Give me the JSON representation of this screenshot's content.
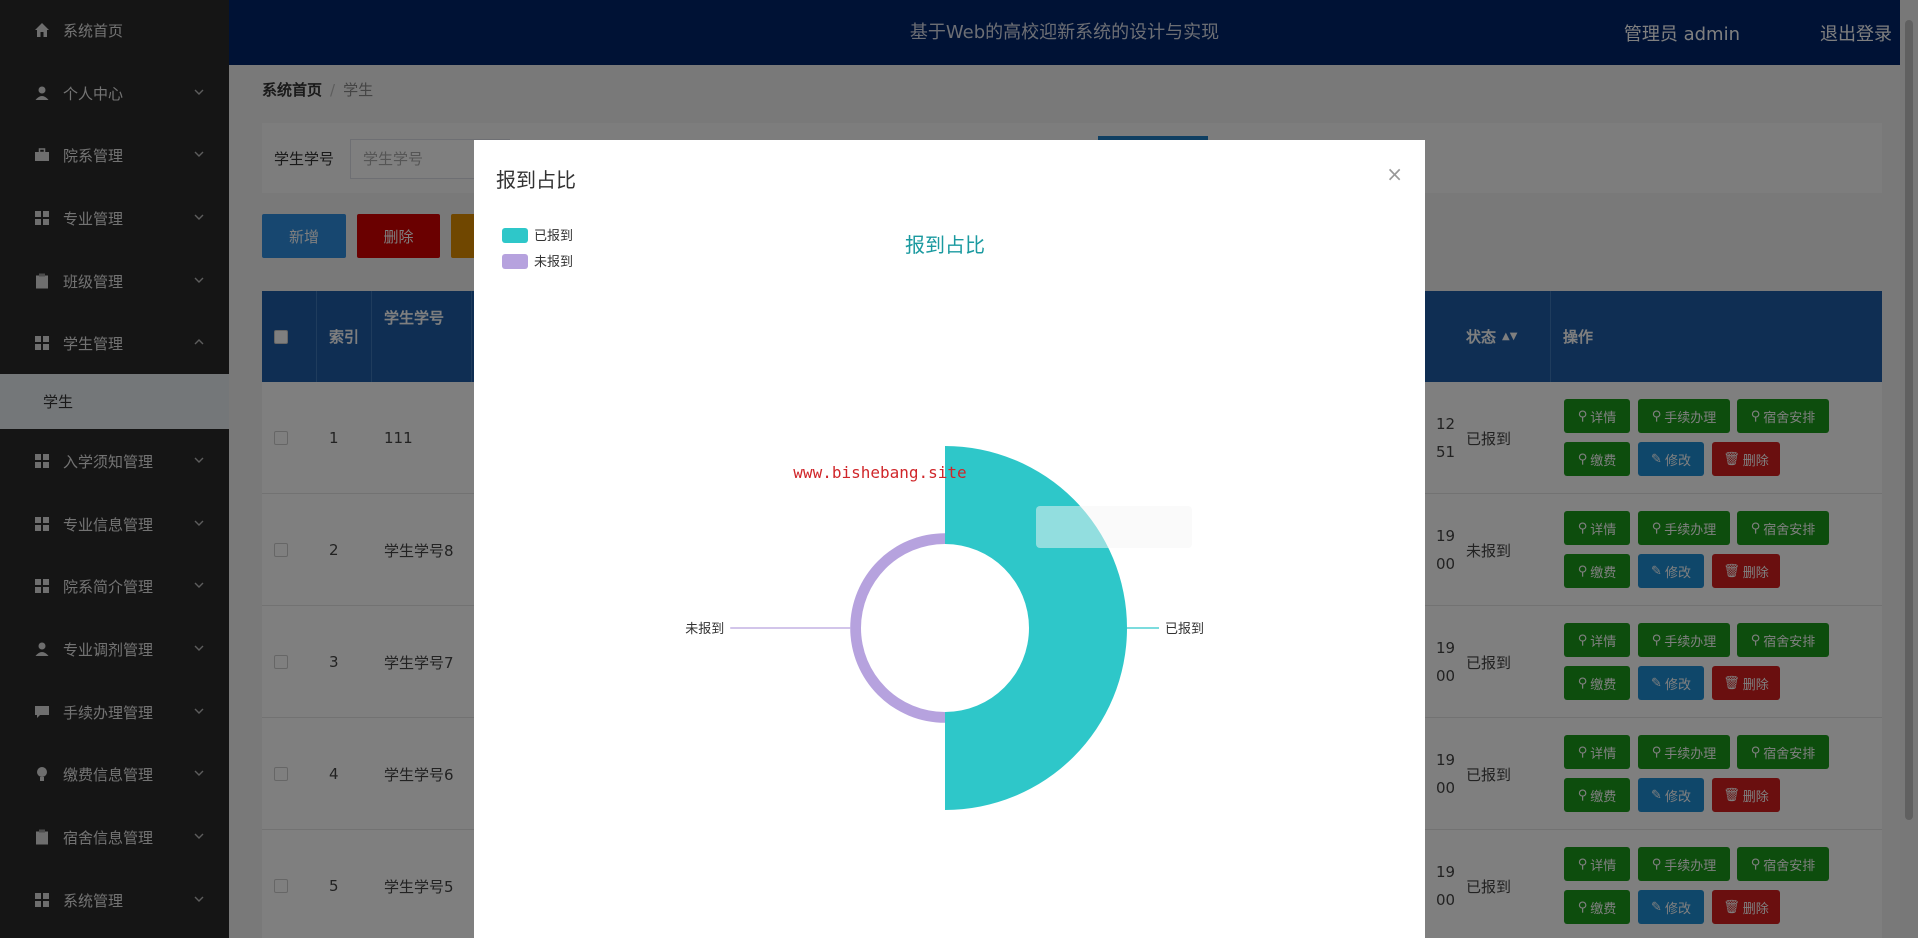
{
  "header": {
    "title": "基于Web的高校迎新系统的设计与实现",
    "user": "管理员 admin",
    "logout": "退出登录"
  },
  "sidebar": {
    "items": [
      {
        "label": "系统首页",
        "icon": "home-icon",
        "expandable": false
      },
      {
        "label": "个人中心",
        "icon": "user-icon",
        "expandable": true
      },
      {
        "label": "院系管理",
        "icon": "briefcase-icon",
        "expandable": true
      },
      {
        "label": "专业管理",
        "icon": "grid-icon",
        "expandable": true
      },
      {
        "label": "班级管理",
        "icon": "clipboard-icon",
        "expandable": true
      },
      {
        "label": "学生管理",
        "icon": "grid-icon",
        "expandable": true,
        "expanded": true
      },
      {
        "label": "入学须知管理",
        "icon": "grid-icon",
        "expandable": true
      },
      {
        "label": "专业信息管理",
        "icon": "grid-icon",
        "expandable": true
      },
      {
        "label": "院系简介管理",
        "icon": "grid-icon",
        "expandable": true
      },
      {
        "label": "专业调剂管理",
        "icon": "user-icon",
        "expandable": true
      },
      {
        "label": "手续办理管理",
        "icon": "chat-icon",
        "expandable": true
      },
      {
        "label": "缴费信息管理",
        "icon": "bulb-icon",
        "expandable": true
      },
      {
        "label": "宿舍信息管理",
        "icon": "clipboard-icon",
        "expandable": true
      },
      {
        "label": "系统管理",
        "icon": "grid-icon",
        "expandable": true
      }
    ],
    "sub_item": "学生"
  },
  "breadcrumb": {
    "home": "系统首页",
    "current": "学生"
  },
  "search": {
    "label": "学生学号",
    "placeholder": "学生学号"
  },
  "toolbar": {
    "add": "新增",
    "delete": "删除"
  },
  "table": {
    "headers": {
      "index": "索引",
      "student_no": "学生学号",
      "status": "状态",
      "actions": "操作"
    },
    "rows": [
      {
        "index": "1",
        "student_no": "111",
        "partial_a": "12",
        "partial_b": "51",
        "status": "已报到"
      },
      {
        "index": "2",
        "student_no": "学生学号8",
        "partial_a": "19",
        "partial_b": "00",
        "status": "未报到"
      },
      {
        "index": "3",
        "student_no": "学生学号7",
        "partial_a": "19",
        "partial_b": "00",
        "status": "已报到"
      },
      {
        "index": "4",
        "student_no": "学生学号6",
        "partial_a": "19",
        "partial_b": "00",
        "status": "已报到"
      },
      {
        "index": "5",
        "student_no": "学生学号5",
        "partial_a": "19",
        "partial_b": "00",
        "status": "已报到"
      }
    ],
    "actions": {
      "detail": "详情",
      "procedure": "手续办理",
      "dorm": "宿舍安排",
      "pay": "缴费",
      "edit": "修改",
      "delete": "删除"
    }
  },
  "modal": {
    "title": "报到占比",
    "close": "×"
  },
  "chart_data": {
    "type": "pie",
    "title": "报到占比",
    "categories": [
      "已报到",
      "未报到"
    ],
    "values": [
      4,
      1
    ],
    "colors": [
      "#2ec7c9",
      "#b6a2de"
    ],
    "style": "rose",
    "legend": "top-left",
    "watermark": "www.bishebang.site"
  }
}
